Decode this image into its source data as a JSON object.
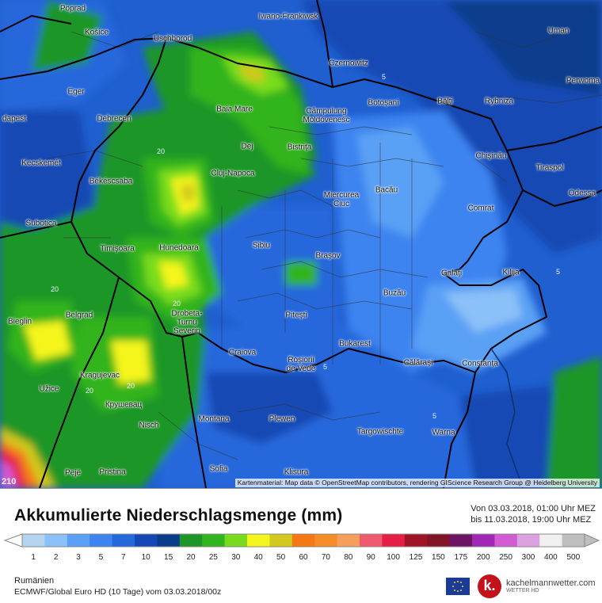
{
  "map": {
    "attribution": "Kartenmaterial: Map data © OpenStreetMap contributors, rendering GIScience Research Group @ Heidelberg University",
    "corner_value": "210",
    "cities": [
      {
        "id": "poprad",
        "name": "Poprad"
      },
      {
        "id": "kosice",
        "name": "Košice"
      },
      {
        "id": "uschhorod",
        "name": "Uschhorod"
      },
      {
        "id": "iwano",
        "name": "Iwano-Frankiwsk"
      },
      {
        "id": "uman",
        "name": "Uman"
      },
      {
        "id": "czernowitz",
        "name": "Czernowitz"
      },
      {
        "id": "perwomaisk",
        "name": "Perwoma"
      },
      {
        "id": "eger",
        "name": "Eger"
      },
      {
        "id": "rybnitza",
        "name": "Rybniza"
      },
      {
        "id": "baiamare",
        "name": "Baia Mare"
      },
      {
        "id": "botosani",
        "name": "Botoşani"
      },
      {
        "id": "balti",
        "name": "Bălţi"
      },
      {
        "id": "budapest",
        "name": "dapest"
      },
      {
        "id": "debrecen",
        "name": "Debrecen"
      },
      {
        "id": "campulung",
        "name": "Câmpulung\nMoldovenesc"
      },
      {
        "id": "dej",
        "name": "Dej"
      },
      {
        "id": "bistrita",
        "name": "Bistriţa"
      },
      {
        "id": "chisinau",
        "name": "Chişinău"
      },
      {
        "id": "kecskemet",
        "name": "Kecskemét"
      },
      {
        "id": "cluj",
        "name": "Cluj-Napoca"
      },
      {
        "id": "tiraspol",
        "name": "Tiraspol"
      },
      {
        "id": "bekescsaba",
        "name": "Békéscsaba"
      },
      {
        "id": "odessa",
        "name": "Odessa"
      },
      {
        "id": "miercurea",
        "name": "Miercurea\nCiuc"
      },
      {
        "id": "bacau",
        "name": "Bacău"
      },
      {
        "id": "subotica",
        "name": "Subotica"
      },
      {
        "id": "comrat",
        "name": "Comrat"
      },
      {
        "id": "timisoara",
        "name": "Timişoara"
      },
      {
        "id": "hunedoara",
        "name": "Hunedoara"
      },
      {
        "id": "sibiu",
        "name": "Sibiu"
      },
      {
        "id": "brasov",
        "name": "Braşov"
      },
      {
        "id": "galati",
        "name": "Galaţi"
      },
      {
        "id": "kilija",
        "name": "Kilija"
      },
      {
        "id": "buzau",
        "name": "Buzău"
      },
      {
        "id": "drobeta",
        "name": "Drobeta-\nTurnu\nSeverin"
      },
      {
        "id": "pitesti",
        "name": "Piteşti"
      },
      {
        "id": "bieglin",
        "name": "Bieglin"
      },
      {
        "id": "belgrad",
        "name": "Belgrad"
      },
      {
        "id": "bukarest",
        "name": "Bukarest"
      },
      {
        "id": "craiova",
        "name": "Craiova"
      },
      {
        "id": "rosiori",
        "name": "Roşiorii\nde Vede"
      },
      {
        "id": "calarasi",
        "name": "Călăraşi"
      },
      {
        "id": "constanta",
        "name": "Constanţa"
      },
      {
        "id": "kragujevac",
        "name": "Kragujevac"
      },
      {
        "id": "uzice",
        "name": "Užice"
      },
      {
        "id": "krusevac",
        "name": "Крушевац"
      },
      {
        "id": "montana",
        "name": "Montana"
      },
      {
        "id": "plewen",
        "name": "Plewen"
      },
      {
        "id": "targowischte",
        "name": "Targowischte"
      },
      {
        "id": "warna",
        "name": "Warna"
      },
      {
        "id": "nisch",
        "name": "Nisch"
      },
      {
        "id": "sofia",
        "name": "Sofia"
      },
      {
        "id": "pristina",
        "name": "Pristina"
      },
      {
        "id": "pejë",
        "name": "Pejë"
      },
      {
        "id": "klisura",
        "name": "Klisura"
      }
    ],
    "contour_labels": [
      "5",
      "5",
      "5",
      "5",
      "20",
      "20",
      "20",
      "20",
      "20"
    ]
  },
  "legend": {
    "title": "Akkumulierte Niederschlagsmenge (mm)",
    "period_from": "Von 03.03.2018, 01:00 Uhr MEZ",
    "period_to": "bis 11.03.2018, 19:00 Uhr MEZ",
    "levels": [
      "1",
      "2",
      "3",
      "5",
      "7",
      "10",
      "15",
      "20",
      "25",
      "30",
      "40",
      "50",
      "60",
      "70",
      "80",
      "90",
      "100",
      "125",
      "150",
      "175",
      "200",
      "250",
      "300",
      "400",
      "500"
    ],
    "colors": [
      "#b4d4f0",
      "#8cc0f8",
      "#5aa0f5",
      "#3c84f0",
      "#2568dc",
      "#1448b4",
      "#0a3c8c",
      "#1e9628",
      "#32b41e",
      "#78dc1e",
      "#f5f51e",
      "#d2c81e",
      "#f57814",
      "#f58c28",
      "#f5a05a",
      "#f05a6e",
      "#e61e46",
      "#a01428",
      "#821428",
      "#6e1464",
      "#a028b4",
      "#d25ad2",
      "#dca0e1",
      "#f0f0f0",
      "#bebebe"
    ],
    "region": "Rumänien",
    "model": "ECMWF/Global Euro HD (10 Tage) vom 03.03.2018/00z",
    "brand": "kachelmannwetter.com",
    "brand_sub": "WETTER HD",
    "logo_letter": "k."
  }
}
